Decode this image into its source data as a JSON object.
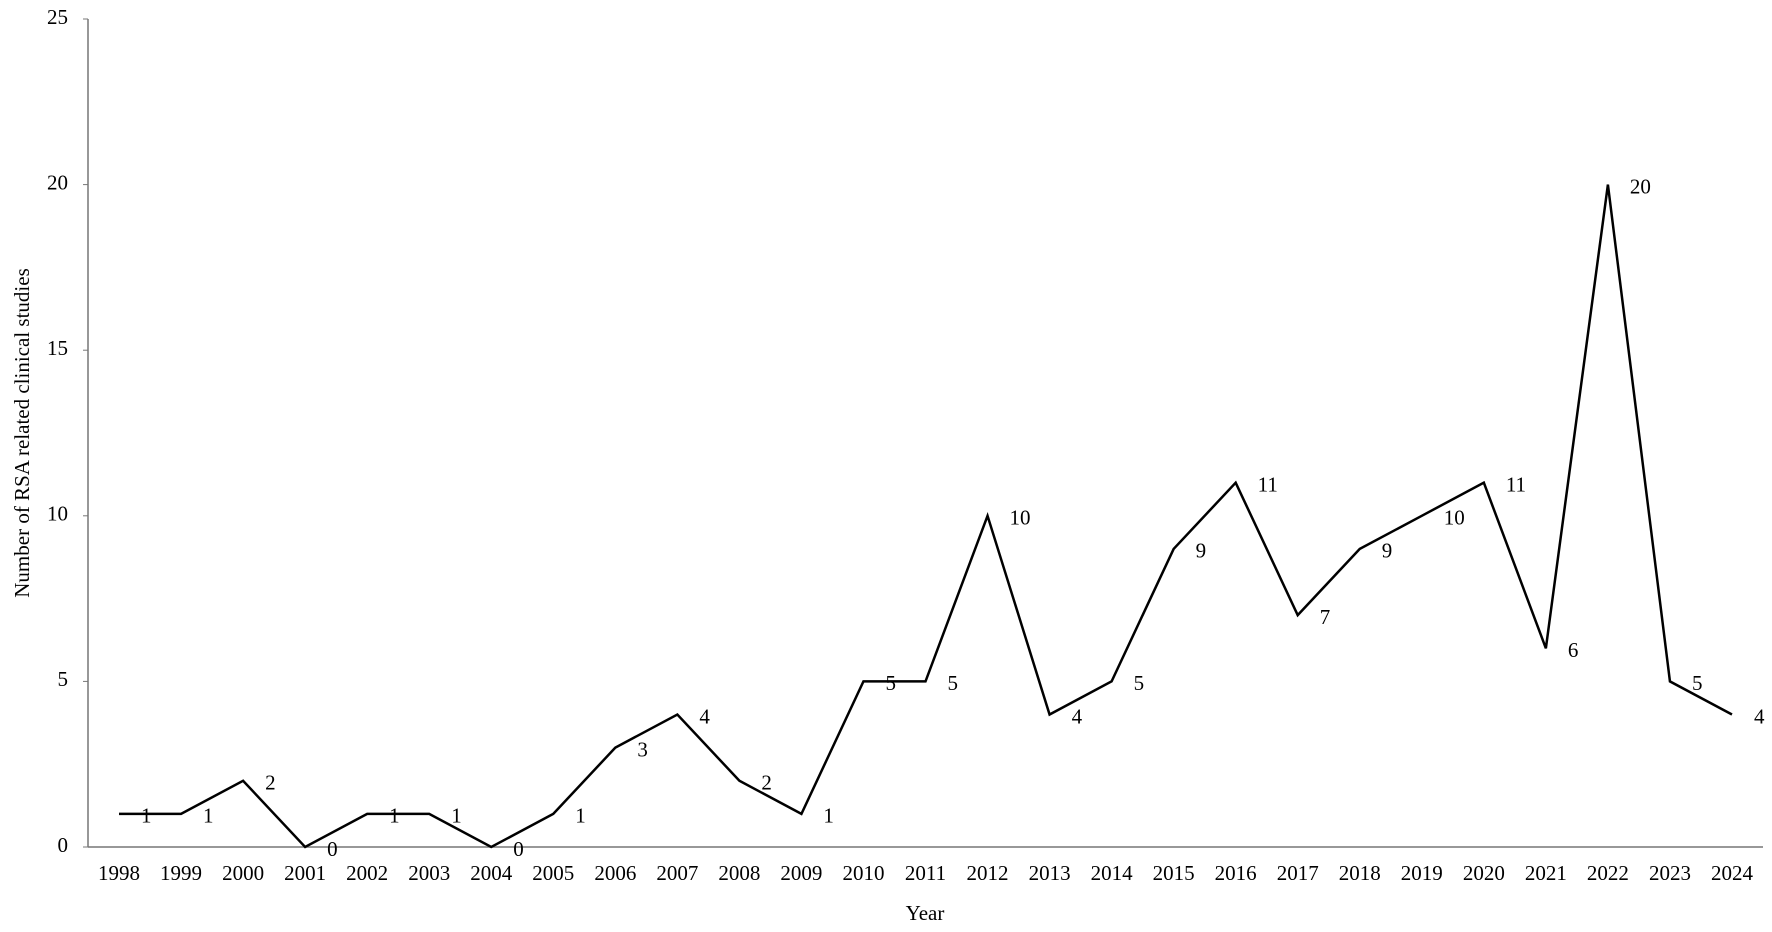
{
  "chart_data": {
    "type": "line",
    "y_label": "Number of RSA related  clinical studies",
    "x_label": "Year",
    "categories": [
      "1998",
      "1999",
      "2000",
      "2001",
      "2002",
      "2003",
      "2004",
      "2005",
      "2006",
      "2007",
      "2008",
      "2009",
      "2010",
      "2011",
      "2012",
      "2013",
      "2014",
      "2015",
      "2016",
      "2017",
      "2018",
      "2019",
      "2020",
      "2021",
      "2022",
      "2023",
      "2024"
    ],
    "values": [
      1,
      1,
      2,
      0,
      1,
      1,
      0,
      1,
      3,
      4,
      2,
      1,
      5,
      5,
      10,
      4,
      5,
      9,
      11,
      7,
      9,
      10,
      11,
      6,
      20,
      5,
      4
    ],
    "color": "#000000",
    "ylim": [
      0,
      25
    ],
    "yticks": [
      0,
      5,
      10,
      15,
      20,
      25
    ],
    "grid": false
  }
}
